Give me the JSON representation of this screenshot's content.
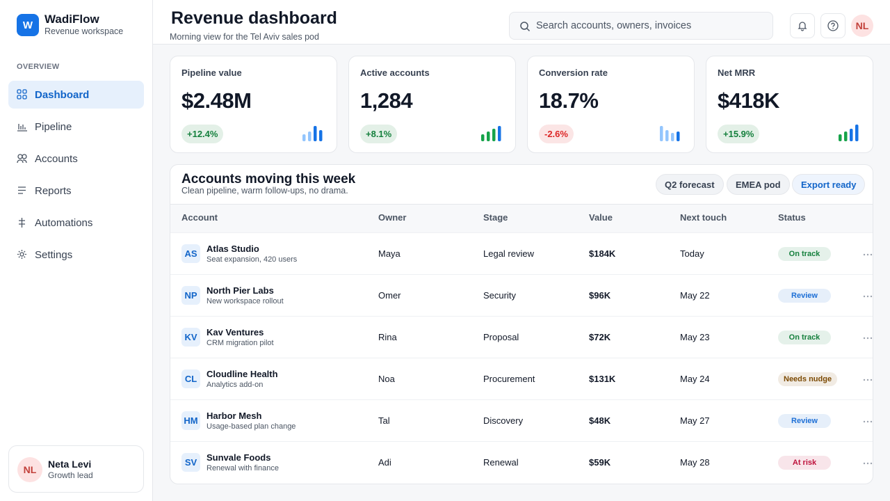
{
  "sidebar": {
    "logo": "W",
    "brand": "WadiFlow",
    "workspace": "Revenue workspace",
    "section": "OVERVIEW",
    "nav": [
      "Dashboard",
      "Pipeline",
      "Accounts",
      "Reports",
      "Automations",
      "Settings"
    ],
    "user": {
      "initials": "NL",
      "name": "Neta Levi",
      "role": "Growth lead"
    }
  },
  "header": {
    "title": "Revenue dashboard",
    "subtitle": "Morning view for the Tel Aviv sales pod",
    "search": "Search accounts, owners, invoices",
    "avatar": "NL"
  },
  "kpis": [
    {
      "label": "Pipeline value",
      "value": "$2.48M",
      "change": "+12.4%",
      "color": "#15803d"
    },
    {
      "label": "Active accounts",
      "value": "1,284",
      "change": "+8.1%",
      "color": "#15803d"
    },
    {
      "label": "Conversion rate",
      "value": "18.7%",
      "change": "-2.6%",
      "color": "#dc2626"
    },
    {
      "label": "Net MRR",
      "value": "$418K",
      "change": "+15.9%",
      "color": "#15803d"
    }
  ],
  "table": {
    "title": "Accounts moving this week",
    "subtitle": "Clean pipeline, warm follow-ups, no drama.",
    "filters": [
      "Q2 forecast",
      "EMEA pod"
    ],
    "action": "Export ready",
    "columns": [
      "Account",
      "Owner",
      "Stage",
      "Value",
      "Next touch",
      "Status"
    ],
    "rows": [
      {
        "initials": "AS",
        "name": "Atlas Studio",
        "detail": "Seat expansion, 420 users",
        "owner": "Maya",
        "stage": "Legal review",
        "value": "$184K",
        "next": "Today",
        "status": "On track",
        "color": "#15803d"
      },
      {
        "initials": "NP",
        "name": "North Pier Labs",
        "detail": "New workspace rollout",
        "owner": "Omer",
        "stage": "Security",
        "value": "$96K",
        "next": "May 22",
        "status": "Review",
        "color": "#1d6fd6"
      },
      {
        "initials": "KV",
        "name": "Kav Ventures",
        "detail": "CRM migration pilot",
        "owner": "Rina",
        "stage": "Proposal",
        "value": "$72K",
        "next": "May 23",
        "status": "On track",
        "color": "#15803d"
      },
      {
        "initials": "CL",
        "name": "Cloudline Health",
        "detail": "Analytics add-on",
        "owner": "Noa",
        "stage": "Procurement",
        "value": "$131K",
        "next": "May 24",
        "status": "Needs nudge",
        "color": "#7c4a03"
      },
      {
        "initials": "HM",
        "name": "Harbor Mesh",
        "detail": "Usage-based plan change",
        "owner": "Tal",
        "stage": "Discovery",
        "value": "$48K",
        "next": "May 27",
        "status": "Review",
        "color": "#1d6fd6"
      },
      {
        "initials": "SV",
        "name": "Sunvale Foods",
        "detail": "Renewal with finance",
        "owner": "Adi",
        "stage": "Renewal",
        "value": "$59K",
        "next": "May 28",
        "status": "At risk",
        "color": "#be123c"
      }
    ]
  }
}
